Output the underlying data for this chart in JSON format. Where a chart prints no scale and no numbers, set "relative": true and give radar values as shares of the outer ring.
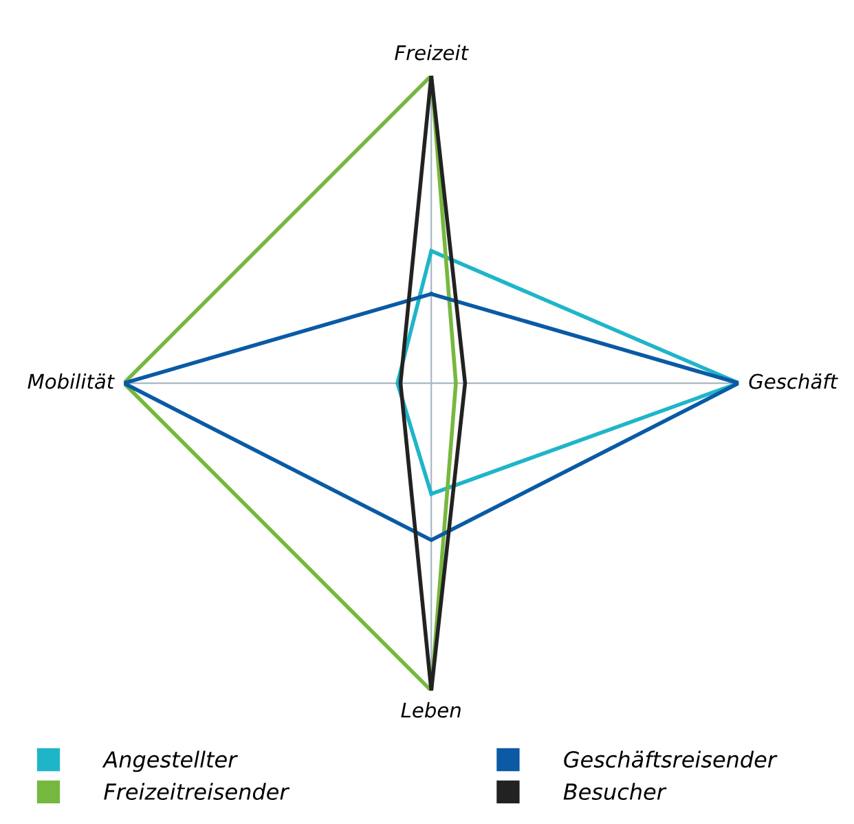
{
  "chart_data": {
    "type": "radar",
    "relative": true,
    "categories": [
      "Freizeit",
      "Geschäft",
      "Leben",
      "Mobilität"
    ],
    "series": [
      {
        "name": "Angestellter",
        "color": "#1fb5c9",
        "values": [
          0.43,
          1.0,
          0.36,
          0.11
        ]
      },
      {
        "name": "Freizeitreisender",
        "color": "#76b83f",
        "values": [
          1.0,
          0.08,
          1.0,
          1.0
        ]
      },
      {
        "name": "Geschäftsreisender",
        "color": "#0a5aa5",
        "values": [
          0.29,
          1.0,
          0.51,
          1.0
        ]
      },
      {
        "name": "Besucher",
        "color": "#222222",
        "values": [
          1.0,
          0.11,
          1.0,
          0.1
        ]
      }
    ],
    "legend": "bottom",
    "grid": true,
    "marker": "none",
    "line_style": "solid"
  }
}
